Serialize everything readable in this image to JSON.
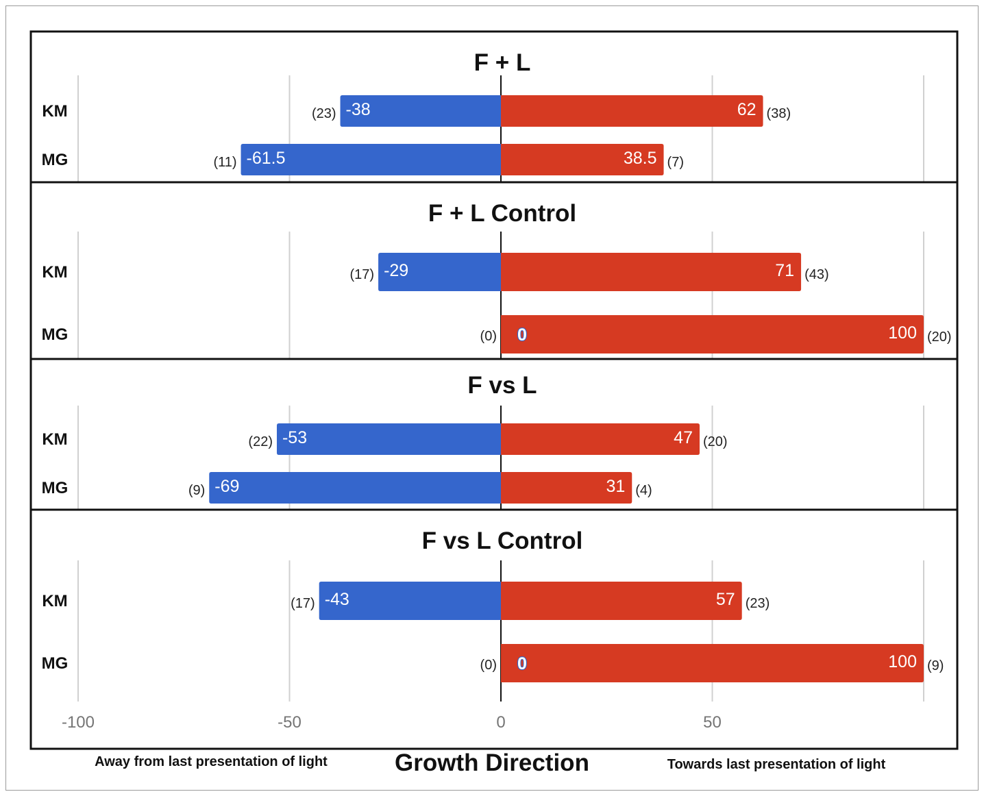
{
  "chart_data": {
    "type": "bar",
    "orientation": "horizontal",
    "stacked": true,
    "xlabel": "Growth Direction",
    "x_ticks": [
      "-100",
      "-50",
      "0",
      "50"
    ],
    "xlim": [
      -100,
      100
    ],
    "left_note": "Away from last presentation of light",
    "right_note": "Towards last presentation of light",
    "colors": {
      "away": "#3566cc",
      "towards": "#d63a22"
    },
    "grid": true,
    "panels": [
      {
        "title": "F + L",
        "categories": [
          "KM",
          "MG"
        ],
        "away_values": [
          -38,
          -61.5
        ],
        "away_labels": [
          "-38",
          "-61.5"
        ],
        "away_counts": [
          "(23)",
          "(11)"
        ],
        "towards_values": [
          62,
          38.5
        ],
        "towards_labels": [
          "62",
          "38.5"
        ],
        "towards_counts": [
          "(38)",
          "(7)"
        ]
      },
      {
        "title": "F + L Control",
        "categories": [
          "KM",
          "MG"
        ],
        "away_values": [
          -29,
          0
        ],
        "away_labels": [
          "-29",
          "0"
        ],
        "away_counts": [
          "(17)",
          "(0)"
        ],
        "towards_values": [
          71,
          100
        ],
        "towards_labels": [
          "71",
          "100"
        ],
        "towards_counts": [
          "(43)",
          "(20)"
        ]
      },
      {
        "title": "F vs L",
        "categories": [
          "KM",
          "MG"
        ],
        "away_values": [
          -53,
          -69
        ],
        "away_labels": [
          "-53",
          "-69"
        ],
        "away_counts": [
          "(22)",
          "(9)"
        ],
        "towards_values": [
          47,
          31
        ],
        "towards_labels": [
          "47",
          "31"
        ],
        "towards_counts": [
          "(20)",
          "(4)"
        ]
      },
      {
        "title": "F vs L Control",
        "categories": [
          "KM",
          "MG"
        ],
        "away_values": [
          -43,
          0
        ],
        "away_labels": [
          "-43",
          "0"
        ],
        "away_counts": [
          "(17)",
          "(0)"
        ],
        "towards_values": [
          57,
          100
        ],
        "towards_labels": [
          "57",
          "100"
        ],
        "towards_counts": [
          "(23)",
          "(9)"
        ]
      }
    ]
  }
}
